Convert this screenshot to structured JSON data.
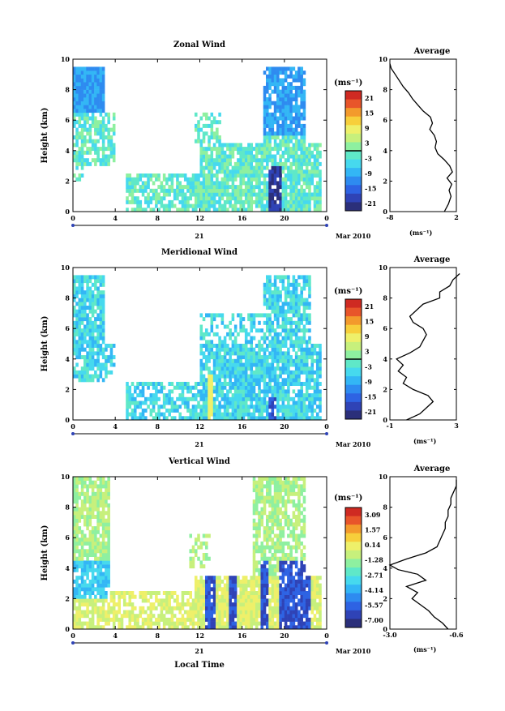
{
  "figure": {
    "xlabel": "Local Time",
    "date_label": "Mar 2010",
    "day_label": "21",
    "colors": [
      "#2b2f7a",
      "#2f43b6",
      "#2e63e3",
      "#2e8bf0",
      "#33b6f5",
      "#46d9ee",
      "#5fe8c8",
      "#8ef0a0",
      "#c7f07c",
      "#eef06a",
      "#f7cf3b",
      "#f39a2c",
      "#e8552a",
      "#cf2a22"
    ]
  },
  "chart_data": [
    {
      "type": "heatmap",
      "title": "Zonal Wind",
      "ylabel": "Height (km)",
      "xlim": [
        0,
        24
      ],
      "ylim": [
        0,
        10
      ],
      "xticks": [
        "0",
        "4",
        "8",
        "12",
        "16",
        "20",
        "0"
      ],
      "yticks": [
        "0",
        "2",
        "4",
        "6",
        "8",
        "10"
      ],
      "colorbar": {
        "unit": "(ms⁻¹)",
        "ticks": [
          "21",
          "15",
          "9",
          "3",
          "-3",
          "-9",
          "-15",
          "-21"
        ]
      },
      "average": {
        "title": "Average",
        "xlabel": "(ms⁻¹)",
        "xticks": [
          "-8",
          "2"
        ],
        "yticks": [
          "0",
          "2",
          "4",
          "6",
          "8",
          "10"
        ],
        "profile": [
          [
            0.0,
            0.2
          ],
          [
            0.5,
            0.8
          ],
          [
            1.0,
            1.2
          ],
          [
            1.4,
            0.9
          ],
          [
            1.8,
            1.3
          ],
          [
            2.2,
            0.6
          ],
          [
            2.6,
            1.4
          ],
          [
            3.0,
            1.0
          ],
          [
            3.4,
            0.2
          ],
          [
            3.8,
            -0.8
          ],
          [
            4.2,
            -1.2
          ],
          [
            4.6,
            -1.0
          ],
          [
            5.0,
            -1.3
          ],
          [
            5.4,
            -2.0
          ],
          [
            5.8,
            -1.6
          ],
          [
            6.2,
            -1.9
          ],
          [
            6.6,
            -3.0
          ],
          [
            7.0,
            -3.8
          ],
          [
            7.4,
            -4.6
          ],
          [
            7.8,
            -5.2
          ],
          [
            8.2,
            -6.0
          ],
          [
            8.6,
            -6.6
          ],
          [
            9.0,
            -7.2
          ],
          [
            9.4,
            -7.8
          ],
          [
            9.7,
            -8.0
          ]
        ]
      }
    },
    {
      "type": "heatmap",
      "title": "Meridional Wind",
      "ylabel": "Height (km)",
      "xlim": [
        0,
        24
      ],
      "ylim": [
        0,
        10
      ],
      "xticks": [
        "0",
        "4",
        "8",
        "12",
        "16",
        "20",
        "0"
      ],
      "yticks": [
        "0",
        "2",
        "4",
        "6",
        "8",
        "10"
      ],
      "colorbar": {
        "unit": "(ms⁻¹)",
        "ticks": [
          "21",
          "15",
          "9",
          "3",
          "-3",
          "-9",
          "-15",
          "-21"
        ]
      },
      "average": {
        "title": "Average",
        "xlabel": "(ms⁻¹)",
        "xticks": [
          "-1",
          "3"
        ],
        "yticks": [
          "0",
          "2",
          "4",
          "6",
          "8",
          "10"
        ],
        "profile": [
          [
            0.0,
            0.0
          ],
          [
            0.4,
            0.8
          ],
          [
            0.8,
            1.2
          ],
          [
            1.2,
            1.6
          ],
          [
            1.6,
            1.3
          ],
          [
            2.0,
            0.4
          ],
          [
            2.4,
            -0.2
          ],
          [
            2.8,
            0.0
          ],
          [
            3.2,
            -0.5
          ],
          [
            3.6,
            -0.2
          ],
          [
            4.0,
            -0.6
          ],
          [
            4.4,
            0.2
          ],
          [
            4.8,
            0.8
          ],
          [
            5.2,
            1.0
          ],
          [
            5.6,
            1.2
          ],
          [
            6.0,
            1.0
          ],
          [
            6.4,
            0.4
          ],
          [
            6.8,
            0.2
          ],
          [
            7.2,
            0.6
          ],
          [
            7.6,
            1.0
          ],
          [
            8.0,
            2.0
          ],
          [
            8.4,
            2.0
          ],
          [
            8.8,
            2.6
          ],
          [
            9.2,
            2.8
          ],
          [
            9.6,
            3.2
          ]
        ]
      }
    },
    {
      "type": "heatmap",
      "title": "Vertical Wind",
      "ylabel": "Height (km)",
      "xlim": [
        0,
        24
      ],
      "ylim": [
        0,
        10
      ],
      "xticks": [
        "0",
        "4",
        "8",
        "12",
        "16",
        "20",
        "0"
      ],
      "yticks": [
        "0",
        "2",
        "4",
        "6",
        "8",
        "10"
      ],
      "colorbar": {
        "unit": "(ms⁻¹)",
        "ticks": [
          "3.09",
          "1.57",
          "0.14",
          "-1.28",
          "-2.71",
          "-4.14",
          "-5.57",
          "-7.00"
        ]
      },
      "average": {
        "title": "Average",
        "xlabel": "(ms⁻¹)",
        "xticks": [
          "-3.0",
          "-0.6"
        ],
        "yticks": [
          "0",
          "2",
          "4",
          "6",
          "8",
          "10"
        ],
        "profile": [
          [
            0.0,
            -0.9
          ],
          [
            0.4,
            -1.1
          ],
          [
            0.8,
            -1.4
          ],
          [
            1.2,
            -1.6
          ],
          [
            1.6,
            -1.9
          ],
          [
            2.0,
            -2.2
          ],
          [
            2.4,
            -2.0
          ],
          [
            2.8,
            -2.4
          ],
          [
            3.2,
            -1.7
          ],
          [
            3.6,
            -2.0
          ],
          [
            3.9,
            -2.7
          ],
          [
            4.2,
            -3.0
          ],
          [
            4.6,
            -2.4
          ],
          [
            5.0,
            -1.7
          ],
          [
            5.4,
            -1.3
          ],
          [
            5.8,
            -1.2
          ],
          [
            6.2,
            -1.1
          ],
          [
            6.6,
            -1.0
          ],
          [
            7.0,
            -1.0
          ],
          [
            7.4,
            -0.9
          ],
          [
            7.8,
            -0.9
          ],
          [
            8.2,
            -0.8
          ],
          [
            8.6,
            -0.8
          ],
          [
            9.0,
            -0.7
          ],
          [
            9.4,
            -0.6
          ],
          [
            9.8,
            -0.6
          ]
        ]
      }
    }
  ]
}
